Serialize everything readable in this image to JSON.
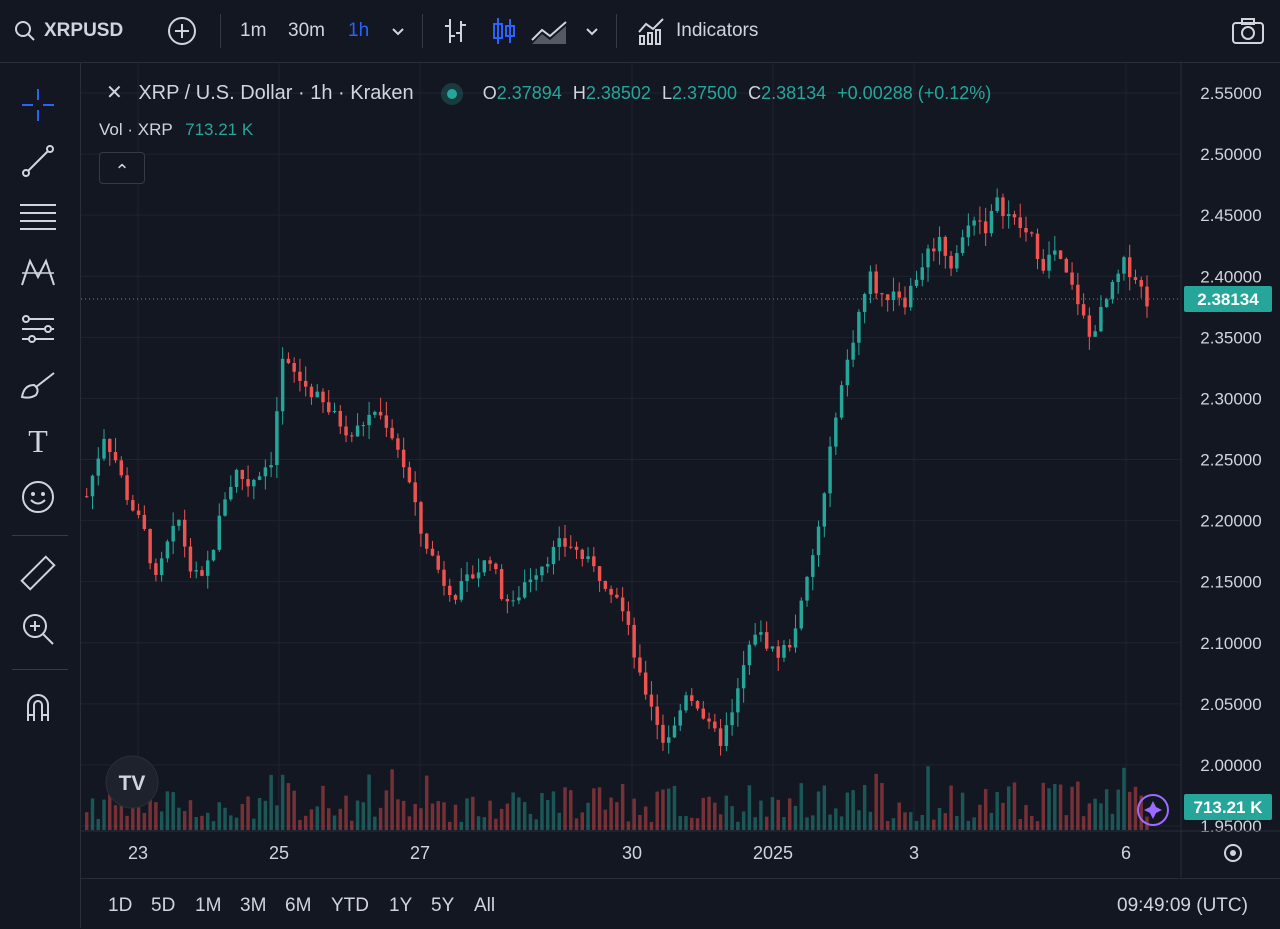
{
  "toolbar": {
    "symbol": "XRPUSD",
    "intervals": [
      "1m",
      "30m",
      "1h"
    ],
    "active_interval": "1h",
    "indicators_label": "Indicators",
    "icons": [
      "search-icon",
      "add-symbol-icon",
      "chevron-down-icon",
      "bar-style-icon",
      "candles-icon",
      "area-icon",
      "indicators-icon",
      "camera-icon"
    ]
  },
  "left_toolbar": {
    "tools": [
      "crosshair-icon",
      "trendline-icon",
      "fib-icon",
      "pattern-icon",
      "projection-icon",
      "brush-icon",
      "text-icon",
      "emoji-icon",
      "ruler-icon",
      "zoom-icon",
      "magnet-icon"
    ],
    "text_tool_label": "T"
  },
  "legend": {
    "title": "XRP / U.S. Dollar · 1h · Kraken",
    "o_label": "O",
    "o": "2.37894",
    "h_label": "H",
    "h": "2.38502",
    "l_label": "L",
    "l": "2.37500",
    "c_label": "C",
    "c": "2.38134",
    "change": "+0.00288 (+0.12%)",
    "vol_label": "Vol · XRP",
    "vol": "713.21 K",
    "collapse_glyph": "⌃",
    "close_glyph": "✕"
  },
  "price_badge": "2.38134",
  "volume_badge": "713.21 K",
  "logo_text": "TV",
  "bottom": {
    "periods": [
      "1D",
      "5D",
      "1M",
      "3M",
      "6M",
      "YTD",
      "1Y",
      "5Y",
      "All"
    ],
    "clock": "09:49:09 (UTC)"
  },
  "colors": {
    "up": "#26a69a",
    "down": "#ef5350",
    "background": "#131722",
    "grid": "#1f2330",
    "active": "#2962ff"
  },
  "chart_data": {
    "type": "candlestick",
    "symbol": "XRP / U.S. Dollar",
    "interval": "1h",
    "exchange": "Kraken",
    "x_labels": [
      "23",
      "25",
      "27",
      "30",
      "2025",
      "3",
      "6"
    ],
    "y_ticks": [
      "2.55000",
      "2.50000",
      "2.45000",
      "2.40000",
      "2.35000",
      "2.30000",
      "2.25000",
      "2.20000",
      "2.15000",
      "2.10000",
      "2.05000",
      "2.00000",
      "1.95000"
    ],
    "ylim": [
      1.95,
      2.55
    ],
    "last_price": 2.38134,
    "grid": true,
    "close_path": [
      [
        0,
        2.22
      ],
      [
        3,
        2.27
      ],
      [
        5,
        2.25
      ],
      [
        7,
        2.22
      ],
      [
        10,
        2.19
      ],
      [
        12,
        2.15
      ],
      [
        14,
        2.18
      ],
      [
        16,
        2.2
      ],
      [
        18,
        2.16
      ],
      [
        20,
        2.15
      ],
      [
        22,
        2.18
      ],
      [
        24,
        2.22
      ],
      [
        26,
        2.24
      ],
      [
        28,
        2.23
      ],
      [
        30,
        2.24
      ],
      [
        32,
        2.25
      ],
      [
        33,
        2.29
      ],
      [
        34,
        2.33
      ],
      [
        36,
        2.32
      ],
      [
        38,
        2.31
      ],
      [
        40,
        2.3
      ],
      [
        42,
        2.29
      ],
      [
        44,
        2.28
      ],
      [
        46,
        2.27
      ],
      [
        48,
        2.28
      ],
      [
        50,
        2.29
      ],
      [
        52,
        2.28
      ],
      [
        54,
        2.26
      ],
      [
        56,
        2.23
      ],
      [
        58,
        2.19
      ],
      [
        60,
        2.17
      ],
      [
        62,
        2.15
      ],
      [
        64,
        2.14
      ],
      [
        66,
        2.15
      ],
      [
        68,
        2.16
      ],
      [
        70,
        2.17
      ],
      [
        72,
        2.14
      ],
      [
        74,
        2.13
      ],
      [
        76,
        2.15
      ],
      [
        78,
        2.16
      ],
      [
        80,
        2.17
      ],
      [
        82,
        2.18
      ],
      [
        84,
        2.18
      ],
      [
        86,
        2.17
      ],
      [
        88,
        2.16
      ],
      [
        90,
        2.15
      ],
      [
        92,
        2.14
      ],
      [
        94,
        2.11
      ],
      [
        96,
        2.07
      ],
      [
        98,
        2.05
      ],
      [
        100,
        2.02
      ],
      [
        102,
        2.03
      ],
      [
        104,
        2.06
      ],
      [
        106,
        2.05
      ],
      [
        108,
        2.03
      ],
      [
        110,
        2.02
      ],
      [
        112,
        2.04
      ],
      [
        114,
        2.08
      ],
      [
        116,
        2.11
      ],
      [
        118,
        2.1
      ],
      [
        120,
        2.09
      ],
      [
        122,
        2.1
      ],
      [
        124,
        2.13
      ],
      [
        126,
        2.17
      ],
      [
        128,
        2.22
      ],
      [
        130,
        2.29
      ],
      [
        132,
        2.33
      ],
      [
        134,
        2.37
      ],
      [
        136,
        2.4
      ],
      [
        138,
        2.38
      ],
      [
        140,
        2.39
      ],
      [
        142,
        2.38
      ],
      [
        144,
        2.4
      ],
      [
        146,
        2.42
      ],
      [
        148,
        2.43
      ],
      [
        150,
        2.41
      ],
      [
        152,
        2.43
      ],
      [
        154,
        2.45
      ],
      [
        156,
        2.44
      ],
      [
        158,
        2.46
      ],
      [
        160,
        2.45
      ],
      [
        162,
        2.44
      ],
      [
        164,
        2.43
      ],
      [
        166,
        2.41
      ],
      [
        168,
        2.42
      ],
      [
        170,
        2.4
      ],
      [
        172,
        2.38
      ],
      [
        174,
        2.35
      ],
      [
        176,
        2.37
      ],
      [
        178,
        2.39
      ],
      [
        180,
        2.41
      ],
      [
        182,
        2.4
      ],
      [
        184,
        2.38
      ]
    ],
    "volume_badge": "713.21 K"
  }
}
